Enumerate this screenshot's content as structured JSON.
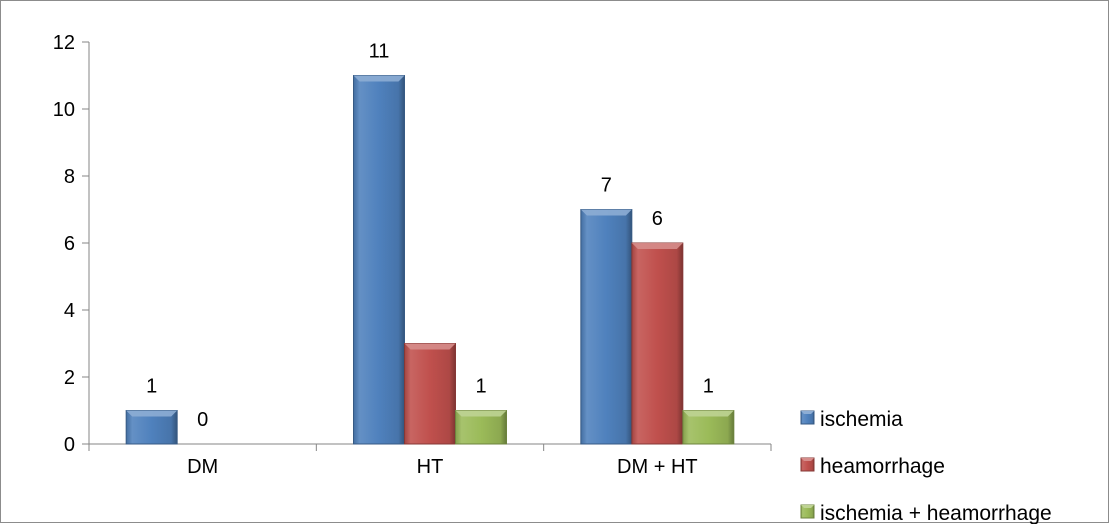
{
  "chart_data": {
    "type": "bar",
    "categories": [
      "DM",
      "HT",
      "DM + HT"
    ],
    "series": [
      {
        "name": "ischemia",
        "values": [
          1,
          11,
          7
        ],
        "color": "#4f81bd"
      },
      {
        "name": "heamorrhage",
        "values": [
          0,
          3,
          6
        ],
        "color": "#c0504d"
      },
      {
        "name": "ischemia + heamorrhage",
        "values": [
          0,
          1,
          1
        ],
        "color": "#9bbb59"
      }
    ],
    "data_labels": [
      [
        "1",
        "0",
        null
      ],
      [
        "11",
        null,
        "1"
      ],
      [
        "7",
        "6",
        "1"
      ]
    ],
    "ylim": [
      0,
      12
    ],
    "yticks": [
      0,
      2,
      4,
      6,
      8,
      10,
      12
    ],
    "grid": false,
    "legend_position": "right-bottom",
    "bar_style": "3d-bevel"
  }
}
